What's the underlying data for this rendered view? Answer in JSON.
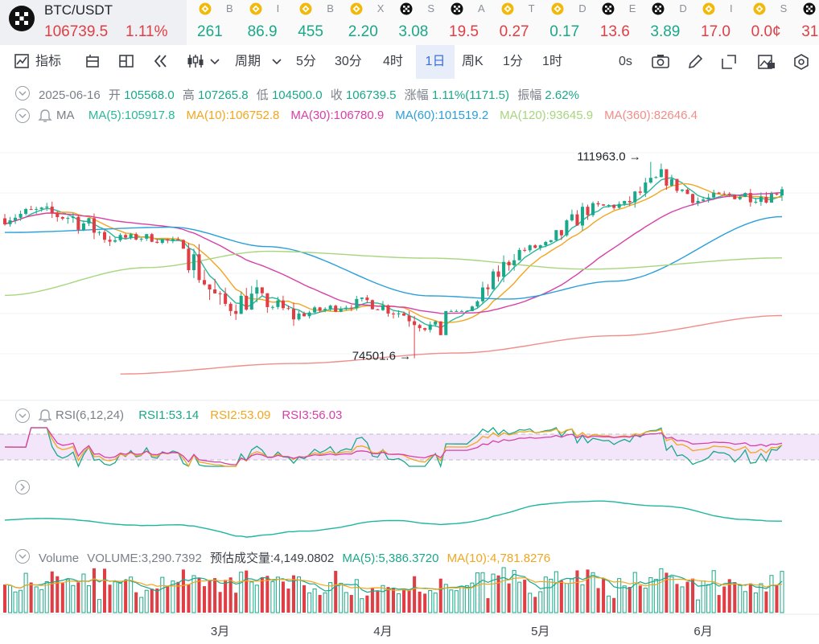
{
  "main_ticker": {
    "pair": "BTC/USDT",
    "price": "106739.5",
    "change": "1.11%"
  },
  "tickers": [
    {
      "icon": "bnb-icon",
      "name": "B",
      "value": "261",
      "color": "#1aa88a"
    },
    {
      "icon": "bnb-icon",
      "name": "I",
      "value": "86.9",
      "color": "#1aa88a"
    },
    {
      "icon": "bnb-icon",
      "name": "B",
      "value": "455",
      "color": "#1aa88a"
    },
    {
      "icon": "bnb-icon",
      "name": "X",
      "value": "2.20",
      "color": "#1aa88a"
    },
    {
      "icon": "okx-icon",
      "name": "S",
      "value": "3.08",
      "color": "#1aa88a"
    },
    {
      "icon": "okx-icon",
      "name": "A",
      "value": "19.5",
      "color": "#e03e45"
    },
    {
      "icon": "bnb-icon",
      "name": "T",
      "value": "0.27",
      "color": "#e03e45"
    },
    {
      "icon": "bnb-icon",
      "name": "D",
      "value": "0.17",
      "color": "#1aa88a"
    },
    {
      "icon": "okx-icon",
      "name": "E",
      "value": "13.6",
      "color": "#e03e45"
    },
    {
      "icon": "okx-icon",
      "name": "D",
      "value": "3.89",
      "color": "#1aa88a"
    },
    {
      "icon": "bnb-icon",
      "name": "I",
      "value": "17.0",
      "color": "#e03e45"
    },
    {
      "icon": "bnb-icon",
      "name": "S",
      "value": "0.0¢",
      "color": "#e03e45"
    },
    {
      "icon": "okx-icon",
      "name": "",
      "value": "31",
      "color": "#e03e45"
    }
  ],
  "toolbar": {
    "indicator": "指标",
    "period": "周期",
    "intervals": [
      "5分",
      "30分",
      "4时",
      "1日",
      "周K",
      "1分",
      "1时"
    ],
    "selected_interval": "1日",
    "seconds": "0s"
  },
  "ohlc": {
    "date": "2025-06-16",
    "open_label": "开",
    "open": "105568.0",
    "high_label": "高",
    "high": "107265.8",
    "low_label": "低",
    "low": "104500.0",
    "close_label": "收",
    "close": "106739.5",
    "change_label": "涨幅",
    "change": "1.11%(1171.5)",
    "amplitude_label": "振幅",
    "amplitude": "2.62%"
  },
  "ma_legend": {
    "title": "MA",
    "items": [
      {
        "label": "MA(5):105917.8",
        "color": "#2ab79a"
      },
      {
        "label": "MA(10):106752.8",
        "color": "#f2a61f"
      },
      {
        "label": "MA(30):106780.9",
        "color": "#d640a8"
      },
      {
        "label": "MA(60):101519.2",
        "color": "#2b9fd9"
      },
      {
        "label": "MA(120):93645.9",
        "color": "#a6d67d"
      },
      {
        "label": "MA(360):82646.4",
        "color": "#f08e8a"
      }
    ]
  },
  "rsi_legend": {
    "title": "RSI(6,12,24)",
    "items": [
      {
        "label": "RSI1:53.14",
        "color": "#1aa88a"
      },
      {
        "label": "RSI2:53.09",
        "color": "#f2a61f"
      },
      {
        "label": "RSI3:56.03",
        "color": "#d640a8"
      }
    ]
  },
  "volume_legend": {
    "title": "Volume",
    "volume": "VOLUME:3,290.7392",
    "estimate": "预估成交量:4,149.0802",
    "ma5": "MA(5):5,386.3720",
    "ma10": "MA(10):4,781.8276",
    "ma5_color": "#1aa88a",
    "ma10_color": "#f2a61f"
  },
  "colors": {
    "up": "#1aa88a",
    "down": "#e03e45",
    "selected_tab_bg": "#e8eef9",
    "selected_tab_text": "#3b6fd8"
  },
  "chart_data": {
    "type": "candlestick",
    "symbol": "BTC/USDT",
    "interval": "1日",
    "x_labels": [
      "3月",
      "4月",
      "5月",
      "6月"
    ],
    "x_label_dates": [
      "2025-03-01",
      "2025-04-01",
      "2025-05-01",
      "2025-06-01"
    ],
    "start_date": "2025-01-19",
    "end_date": "2025-06-16",
    "ylim": [
      68000,
      118000
    ],
    "annotations": [
      {
        "label": "111963.0",
        "value": 111963.0,
        "date": "2025-05-22",
        "kind": "high"
      },
      {
        "label": "74501.6",
        "value": 74501.6,
        "date": "2025-04-07",
        "kind": "low"
      }
    ],
    "candles_weekly_summary": [
      {
        "week_of": "2025-01-19",
        "open": 101200,
        "high": 106000,
        "low": 98500,
        "close": 102500
      },
      {
        "week_of": "2025-01-26",
        "open": 102500,
        "high": 106400,
        "low": 97800,
        "close": 101300
      },
      {
        "week_of": "2025-02-02",
        "open": 101300,
        "high": 102500,
        "low": 91300,
        "close": 97400
      },
      {
        "week_of": "2025-02-09",
        "open": 97400,
        "high": 99200,
        "low": 94800,
        "close": 97600
      },
      {
        "week_of": "2025-02-16",
        "open": 97600,
        "high": 99500,
        "low": 94900,
        "close": 96200
      },
      {
        "week_of": "2025-02-23",
        "open": 96200,
        "high": 96500,
        "low": 78200,
        "close": 84300
      },
      {
        "week_of": "2025-03-02",
        "open": 84300,
        "high": 94900,
        "low": 81200,
        "close": 86200
      },
      {
        "week_of": "2025-03-09",
        "open": 86200,
        "high": 86900,
        "low": 76600,
        "close": 82600
      },
      {
        "week_of": "2025-03-16",
        "open": 82600,
        "high": 86500,
        "low": 81700,
        "close": 84100
      },
      {
        "week_of": "2025-03-23",
        "open": 84100,
        "high": 88700,
        "low": 83300,
        "close": 85400
      },
      {
        "week_of": "2025-03-30",
        "open": 85400,
        "high": 88500,
        "low": 81200,
        "close": 82900
      },
      {
        "week_of": "2025-04-06",
        "open": 82900,
        "high": 83500,
        "low": 74501.6,
        "close": 79500
      },
      {
        "week_of": "2025-04-13",
        "open": 79500,
        "high": 86400,
        "low": 83500,
        "close": 85200
      },
      {
        "week_of": "2025-04-20",
        "open": 85200,
        "high": 95700,
        "low": 84900,
        "close": 94700
      },
      {
        "week_of": "2025-04-27",
        "open": 94700,
        "high": 97900,
        "low": 93200,
        "close": 96400
      },
      {
        "week_of": "2025-05-04",
        "open": 96400,
        "high": 104300,
        "low": 93600,
        "close": 103200
      },
      {
        "week_of": "2025-05-11",
        "open": 103200,
        "high": 105800,
        "low": 100800,
        "close": 103800
      },
      {
        "week_of": "2025-05-18",
        "open": 103800,
        "high": 111963.0,
        "low": 102600,
        "close": 109100
      },
      {
        "week_of": "2025-05-25",
        "open": 109100,
        "high": 110300,
        "low": 103400,
        "close": 104600
      },
      {
        "week_of": "2025-06-01",
        "open": 104600,
        "high": 106800,
        "low": 100400,
        "close": 105700
      },
      {
        "week_of": "2025-06-08",
        "open": 105700,
        "high": 110500,
        "low": 102700,
        "close": 105500
      },
      {
        "week_of": "2025-06-15",
        "open": 105500,
        "high": 107265.8,
        "low": 104500,
        "close": 106739.5
      }
    ],
    "ma_series": [
      {
        "name": "MA(5)",
        "last": 105917.8,
        "color": "#2ab79a"
      },
      {
        "name": "MA(10)",
        "last": 106752.8,
        "color": "#f2a61f"
      },
      {
        "name": "MA(30)",
        "last": 106780.9,
        "color": "#d640a8"
      },
      {
        "name": "MA(60)",
        "last": 101519.2,
        "color": "#2b9fd9"
      },
      {
        "name": "MA(120)",
        "last": 93645.9,
        "color": "#a6d67d"
      },
      {
        "name": "MA(360)",
        "last": 82646.4,
        "color": "#f08e8a"
      }
    ],
    "ma_long_trend": {
      "MA(60)": [
        [
          "2025-01-19",
          98500
        ],
        [
          "2025-02-20",
          99500
        ],
        [
          "2025-03-10",
          95800
        ],
        [
          "2025-04-10",
          86400
        ],
        [
          "2025-04-25",
          85800
        ],
        [
          "2025-05-15",
          89200
        ],
        [
          "2025-06-16",
          101519.2
        ]
      ],
      "MA(120)": [
        [
          "2025-01-19",
          86500
        ],
        [
          "2025-02-15",
          91800
        ],
        [
          "2025-03-10",
          94900
        ],
        [
          "2025-04-10",
          93600
        ],
        [
          "2025-05-10",
          91500
        ],
        [
          "2025-06-16",
          93645.9
        ]
      ],
      "MA(360)": [
        [
          "2025-02-10",
          71500
        ],
        [
          "2025-03-15",
          73500
        ],
        [
          "2025-04-15",
          75500
        ],
        [
          "2025-05-15",
          78800
        ],
        [
          "2025-06-16",
          82646.4
        ]
      ]
    },
    "rsi": {
      "rsi1": 53.14,
      "rsi2": 53.09,
      "rsi3": 56.03,
      "upper_band": 70,
      "lower_band": 30
    },
    "volume": {
      "last": 3290.7392,
      "estimate": 4149.0802,
      "ma5": 5386.372,
      "ma10": 4781.8276
    }
  }
}
